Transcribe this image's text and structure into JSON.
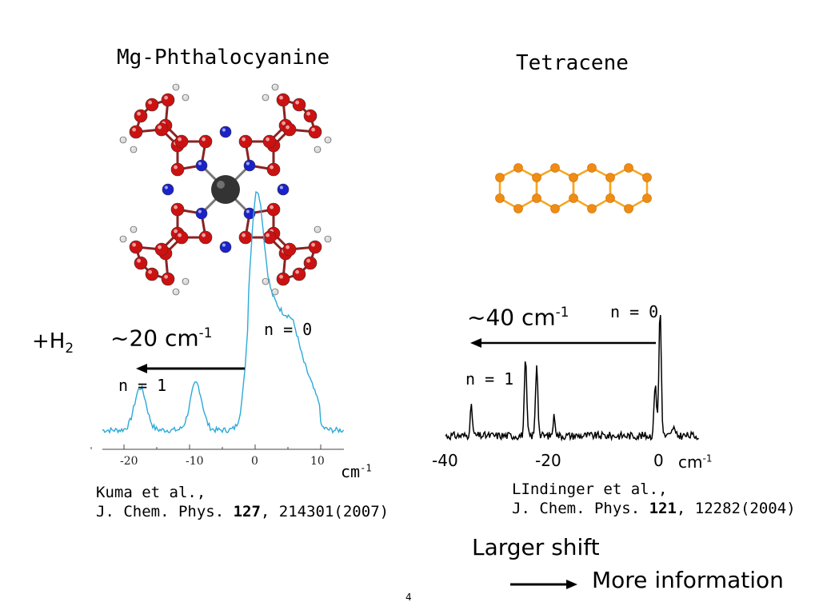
{
  "left": {
    "title": "Mg-Phthalocyanine",
    "prefix": "+H",
    "prefix_sub": "2",
    "shift_value": "~20 cm",
    "shift_sup": "-1",
    "n0": "n = 0",
    "n1": "n = 1",
    "ticks": [
      "-20",
      "-10",
      "0",
      "10"
    ],
    "unit": "cm",
    "unit_sup": "-1",
    "ref_line1": "Kuma et al.,",
    "ref_line2_pre": "J. Chem. Phys. ",
    "ref_vol": "127",
    "ref_line2_post": ", 214301(2007)",
    "line_color": "#2ca9d8"
  },
  "right": {
    "title": "Tetracene",
    "shift_value": "~40 cm",
    "shift_sup": "-1",
    "n0": "n = 0",
    "n1": "n = 1",
    "ticks": [
      "-40",
      "-20",
      "0"
    ],
    "unit": "cm",
    "unit_sup": "-1",
    "ref_line1": "LIndinger et al.,",
    "ref_line2_pre": "J. Chem. Phys. ",
    "ref_vol": "121",
    "ref_line2_post": ", 12282(2004)",
    "line_color": "#000000"
  },
  "conclusion": {
    "line1": "Larger shift",
    "line2": "More information"
  },
  "page_number": "4",
  "colors": {
    "carbon_red": "#cc1111",
    "nitrogen_blue": "#1a22cc",
    "magnesium_gray": "#333333",
    "hydrogen": "#dddddd",
    "tetracene_orange": "#f08c14"
  }
}
